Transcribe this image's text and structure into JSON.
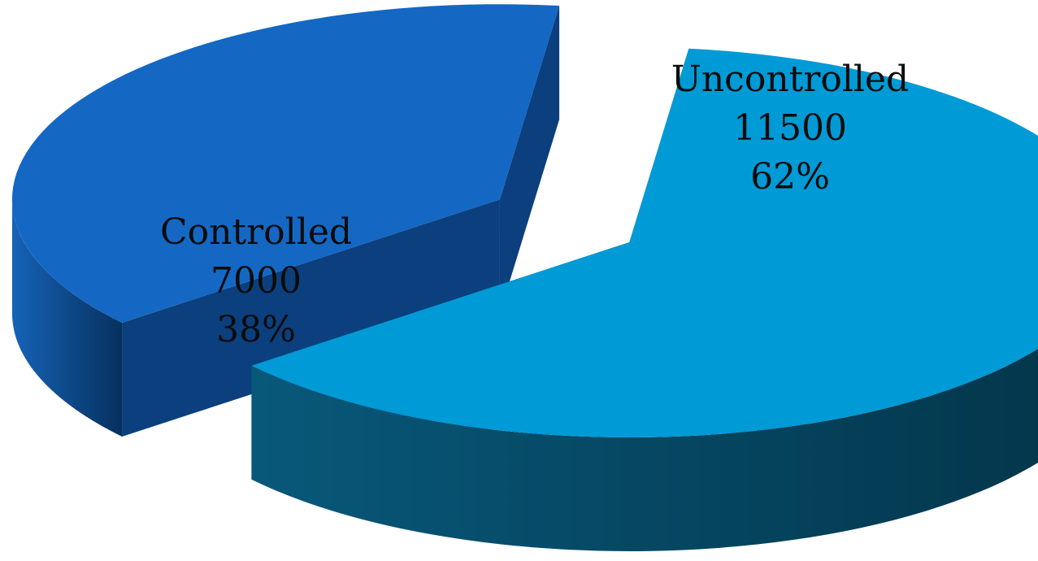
{
  "chart_data": {
    "type": "pie",
    "style": "3d-exploded",
    "slices": [
      {
        "label": "Uncontrolled",
        "value": 11500,
        "percent": "62%",
        "color": "#009ad6",
        "side_color": "#054661"
      },
      {
        "label": "Controlled",
        "value": 7000,
        "percent": "38%",
        "color": "#1468c4",
        "side_color": "#0b3f7d"
      }
    ],
    "title": "",
    "legend": "none",
    "value_text": {
      "0": "11500",
      "1": "7000"
    }
  }
}
